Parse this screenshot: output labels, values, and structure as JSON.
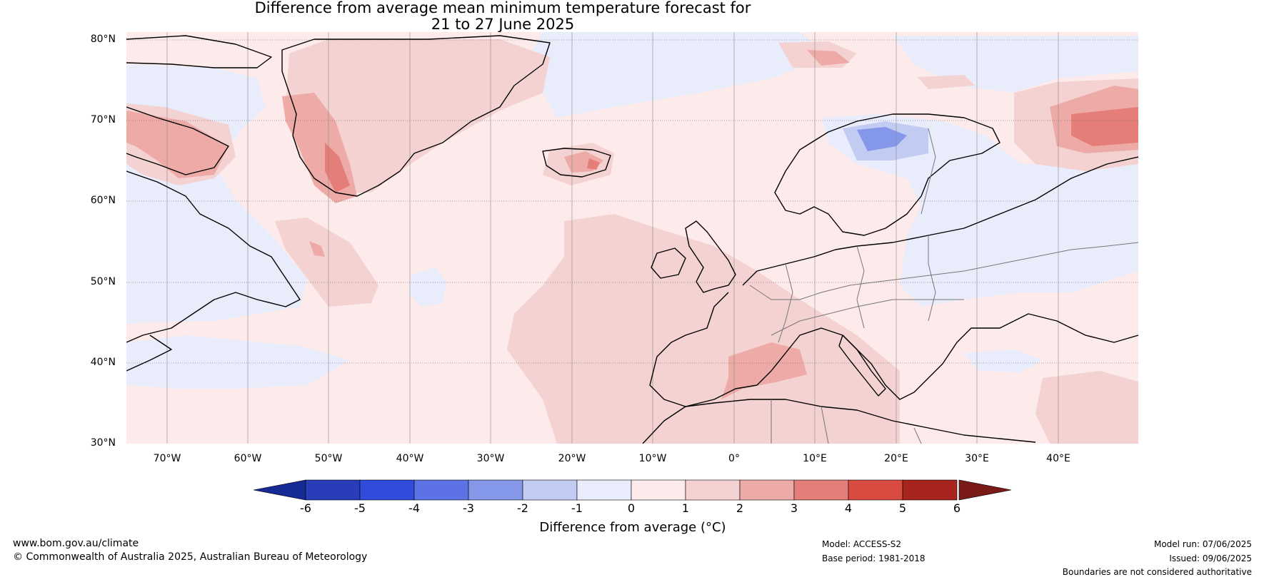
{
  "title": {
    "line1": "Difference from average mean minimum temperature forecast for",
    "line2": "21 to 27 June 2025"
  },
  "map": {
    "lat_labels": [
      "80°N",
      "70°N",
      "60°N",
      "50°N",
      "40°N",
      "30°N"
    ],
    "lon_labels": [
      "70°W",
      "60°W",
      "50°W",
      "40°W",
      "30°W",
      "20°W",
      "10°W",
      "0°",
      "10°E",
      "20°E",
      "30°E",
      "40°E"
    ],
    "extent": {
      "lon": [
        -75,
        50
      ],
      "lat": [
        30,
        81
      ]
    }
  },
  "colorbar": {
    "ticks": [
      "-6",
      "-5",
      "-4",
      "-3",
      "-2",
      "-1",
      "0",
      "1",
      "2",
      "3",
      "4",
      "5",
      "6"
    ],
    "colors": [
      "#162a96",
      "#2a3db8",
      "#2f4cdc",
      "#5d72e4",
      "#8497e8",
      "#c2cbf2",
      "#e9ecfb",
      "#fcebea",
      "#f3d2d1",
      "#edaaa7",
      "#e57e78",
      "#d94b40",
      "#a8241f",
      "#7a1a17"
    ],
    "label": "Difference from average (°C)"
  },
  "footer": {
    "url": "www.bom.gov.au/climate",
    "copyright": "© Commonwealth of Australia 2025, Australian Bureau of Meteorology",
    "model": "Model: ACCESS-S2",
    "base_period": "Base period: 1981-2018",
    "model_run": "Model run: 07/06/2025",
    "issued": "Issued: 09/06/2025",
    "disclaimer": "Boundaries are not considered authoritative"
  }
}
